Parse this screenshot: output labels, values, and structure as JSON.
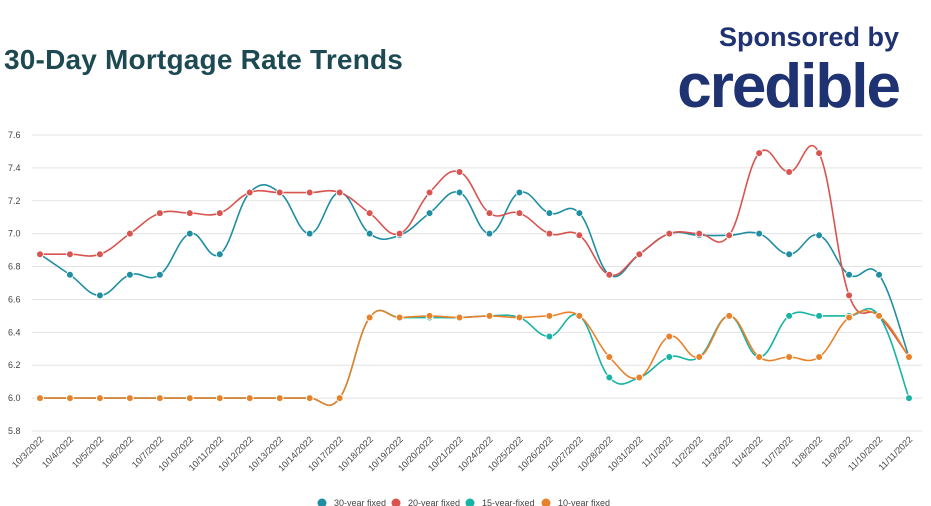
{
  "header": {
    "title": "30-Day Mortgage Rate Trends",
    "sponsor_text": "Sponsored by",
    "brand": "credible"
  },
  "chart_data": {
    "type": "line",
    "title": "30-Day Mortgage Rate Trends",
    "xlabel": "",
    "ylabel": "",
    "ylim": [
      5.8,
      7.6
    ],
    "yticks": [
      5.8,
      6.0,
      6.2,
      6.4,
      6.6,
      6.8,
      7.0,
      7.2,
      7.4,
      7.6
    ],
    "grid": true,
    "legend_position": "bottom",
    "categories": [
      "10/3/2022",
      "10/4/2022",
      "10/5/2022",
      "10/6/2022",
      "10/7/2022",
      "10/10/2022",
      "10/11/2022",
      "10/12/2022",
      "10/13/2022",
      "10/14/2022",
      "10/17/2022",
      "10/18/2022",
      "10/19/2022",
      "10/20/2022",
      "10/21/2022",
      "10/24/2022",
      "10/25/2022",
      "10/26/2022",
      "10/27/2022",
      "10/28/2022",
      "10/31/2022",
      "11/1/2022",
      "11/2/2022",
      "11/3/2022",
      "11/4/2022",
      "11/7/2022",
      "11/8/2022",
      "11/9/2022",
      "11/10/2022",
      "11/11/2022"
    ],
    "series": [
      {
        "name": "30-year fixed",
        "color": "#1f8ea3",
        "values": [
          6.875,
          6.75,
          6.625,
          6.75,
          6.75,
          7.0,
          6.875,
          7.25,
          7.25,
          7.0,
          7.25,
          7.0,
          6.99,
          7.125,
          7.25,
          7.0,
          7.25,
          7.125,
          7.125,
          6.75,
          6.875,
          7.0,
          6.99,
          6.99,
          7.0,
          6.875,
          6.99,
          6.75,
          6.75,
          6.25
        ]
      },
      {
        "name": "20-year fixed",
        "color": "#d9534f",
        "values": [
          6.875,
          6.875,
          6.875,
          7.0,
          7.125,
          7.125,
          7.125,
          7.25,
          7.25,
          7.25,
          7.25,
          7.125,
          7.0,
          7.25,
          7.375,
          7.125,
          7.125,
          7.0,
          6.99,
          6.75,
          6.875,
          7.0,
          7.0,
          6.99,
          7.49,
          7.375,
          7.49,
          6.625,
          6.5,
          6.25
        ]
      },
      {
        "name": "15-year-fixed",
        "color": "#17b3a3",
        "values": [
          6.0,
          6.0,
          6.0,
          6.0,
          6.0,
          6.0,
          6.0,
          6.0,
          6.0,
          6.0,
          6.0,
          6.49,
          6.49,
          6.49,
          6.49,
          6.5,
          6.49,
          6.375,
          6.5,
          6.125,
          6.125,
          6.25,
          6.25,
          6.5,
          6.25,
          6.5,
          6.5,
          6.5,
          6.5,
          6.0
        ]
      },
      {
        "name": "10-year fixed",
        "color": "#e8822a",
        "values": [
          6.0,
          6.0,
          6.0,
          6.0,
          6.0,
          6.0,
          6.0,
          6.0,
          6.0,
          6.0,
          6.0,
          6.49,
          6.49,
          6.5,
          6.49,
          6.5,
          6.49,
          6.5,
          6.5,
          6.25,
          6.125,
          6.375,
          6.25,
          6.5,
          6.25,
          6.25,
          6.25,
          6.49,
          6.5,
          6.25
        ]
      }
    ]
  }
}
